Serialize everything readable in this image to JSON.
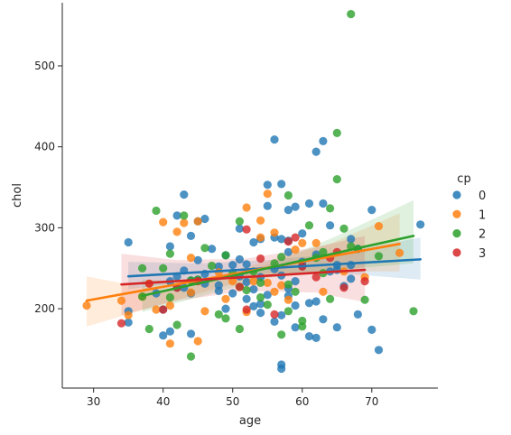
{
  "chart_data": {
    "type": "scatter",
    "xlabel": "age",
    "ylabel": "chol",
    "xlim": [
      25.5,
      79.5
    ],
    "ylim": [
      102,
      578
    ],
    "xticks": [
      30,
      40,
      50,
      60,
      70
    ],
    "yticks": [
      200,
      300,
      400,
      500
    ],
    "grid": false,
    "legend": {
      "title": "cp",
      "placement": "right",
      "entries": [
        "0",
        "1",
        "2",
        "3"
      ]
    },
    "series": [
      {
        "name": "0",
        "color": "#1f77b4",
        "regression": {
          "x": [
            35,
            77
          ],
          "y": [
            240,
            261
          ]
        },
        "band": {
          "x": [
            35,
            45,
            55,
            65,
            77
          ],
          "lower": [
            224,
            236,
            244,
            244,
            236
          ],
          "upper": [
            258,
            256,
            260,
            268,
            288
          ]
        },
        "points": [
          [
            35,
            282
          ],
          [
            35,
            197
          ],
          [
            35,
            183
          ],
          [
            39,
            219
          ],
          [
            40,
            167
          ],
          [
            40,
            199
          ],
          [
            41,
            172
          ],
          [
            41,
            234
          ],
          [
            41,
            277
          ],
          [
            42,
            240
          ],
          [
            42,
            226
          ],
          [
            42,
            315
          ],
          [
            43,
            341
          ],
          [
            43,
            226
          ],
          [
            43,
            247
          ],
          [
            44,
            290
          ],
          [
            44,
            169
          ],
          [
            44,
            219
          ],
          [
            44,
            235
          ],
          [
            45,
            260
          ],
          [
            45,
            236
          ],
          [
            45,
            308
          ],
          [
            46,
            311
          ],
          [
            46,
            231
          ],
          [
            46,
            243
          ],
          [
            47,
            274
          ],
          [
            48,
            222
          ],
          [
            48,
            252
          ],
          [
            48,
            229
          ],
          [
            49,
            266
          ],
          [
            49,
            200
          ],
          [
            50,
            219
          ],
          [
            50,
            254
          ],
          [
            51,
            299
          ],
          [
            51,
            261
          ],
          [
            51,
            240
          ],
          [
            52,
            212
          ],
          [
            52,
            255
          ],
          [
            52,
            233
          ],
          [
            53,
            282
          ],
          [
            53,
            224
          ],
          [
            53,
            203
          ],
          [
            54,
            239
          ],
          [
            54,
            206
          ],
          [
            54,
            286
          ],
          [
            54,
            195
          ],
          [
            55,
            353
          ],
          [
            55,
            327
          ],
          [
            55,
            217
          ],
          [
            56,
            409
          ],
          [
            56,
            288
          ],
          [
            56,
            249
          ],
          [
            56,
            184
          ],
          [
            57,
            354
          ],
          [
            57,
            286
          ],
          [
            57,
            241
          ],
          [
            57,
            192
          ],
          [
            57,
            131
          ],
          [
            57,
            126
          ],
          [
            58,
            322
          ],
          [
            58,
            284
          ],
          [
            58,
            270
          ],
          [
            58,
            225
          ],
          [
            58,
            216
          ],
          [
            59,
            326
          ],
          [
            59,
            234
          ],
          [
            59,
            204
          ],
          [
            59,
            177
          ],
          [
            60,
            258
          ],
          [
            60,
            253
          ],
          [
            60,
            293
          ],
          [
            61,
            330
          ],
          [
            61,
            207
          ],
          [
            61,
            166
          ],
          [
            62,
            394
          ],
          [
            62,
            267
          ],
          [
            62,
            209
          ],
          [
            62,
            164
          ],
          [
            63,
            330
          ],
          [
            63,
            187
          ],
          [
            63,
            407
          ],
          [
            64,
            303
          ],
          [
            64,
            246
          ],
          [
            65,
            254
          ],
          [
            65,
            248
          ],
          [
            65,
            177
          ],
          [
            66,
            228
          ],
          [
            67,
            286
          ],
          [
            67,
            254
          ],
          [
            67,
            237
          ],
          [
            68,
            274
          ],
          [
            68,
            193
          ],
          [
            70,
            322
          ],
          [
            70,
            174
          ],
          [
            71,
            149
          ],
          [
            77,
            304
          ]
        ]
      },
      {
        "name": "1",
        "color": "#ff7f0e",
        "regression": {
          "x": [
            29,
            74
          ],
          "y": [
            210,
            280
          ]
        },
        "band": {
          "x": [
            29,
            40,
            52,
            64,
            74
          ],
          "lower": [
            178,
            206,
            236,
            246,
            246
          ],
          "upper": [
            240,
            222,
            252,
            280,
            318
          ]
        },
        "points": [
          [
            29,
            204
          ],
          [
            34,
            210
          ],
          [
            35,
            192
          ],
          [
            37,
            215
          ],
          [
            38,
            231
          ],
          [
            39,
            199
          ],
          [
            40,
            307
          ],
          [
            41,
            157
          ],
          [
            41,
            204
          ],
          [
            42,
            295
          ],
          [
            43,
            306
          ],
          [
            44,
            220
          ],
          [
            44,
            263
          ],
          [
            45,
            308
          ],
          [
            45,
            160
          ],
          [
            46,
            197
          ],
          [
            48,
            245
          ],
          [
            49,
            212
          ],
          [
            50,
            234
          ],
          [
            52,
            196
          ],
          [
            52,
            325
          ],
          [
            53,
            234
          ],
          [
            54,
            288
          ],
          [
            54,
            309
          ],
          [
            55,
            342
          ],
          [
            55,
            232
          ],
          [
            56,
            221
          ],
          [
            56,
            294
          ],
          [
            57,
            229
          ],
          [
            58,
            211
          ],
          [
            59,
            273
          ],
          [
            60,
            281
          ],
          [
            62,
            281
          ],
          [
            63,
            221
          ],
          [
            66,
            246
          ],
          [
            69,
            239
          ],
          [
            71,
            302
          ],
          [
            74,
            269
          ]
        ]
      },
      {
        "name": "2",
        "color": "#2ca02c",
        "regression": {
          "x": [
            37,
            76
          ],
          "y": [
            216,
            290
          ]
        },
        "band": {
          "x": [
            37,
            45,
            55,
            65,
            76
          ],
          "lower": [
            196,
            214,
            238,
            248,
            256
          ],
          "upper": [
            236,
            232,
            254,
            290,
            334
          ]
        },
        "points": [
          [
            37,
            250
          ],
          [
            37,
            215
          ],
          [
            38,
            175
          ],
          [
            39,
            321
          ],
          [
            40,
            250
          ],
          [
            41,
            214
          ],
          [
            41,
            268
          ],
          [
            42,
            180
          ],
          [
            43,
            315
          ],
          [
            44,
            141
          ],
          [
            44,
            235
          ],
          [
            45,
            236
          ],
          [
            46,
            275
          ],
          [
            47,
            253
          ],
          [
            48,
            193
          ],
          [
            49,
            188
          ],
          [
            49,
            266
          ],
          [
            50,
            244
          ],
          [
            51,
            308
          ],
          [
            51,
            227
          ],
          [
            51,
            175
          ],
          [
            52,
            223
          ],
          [
            53,
            246
          ],
          [
            54,
            232
          ],
          [
            54,
            214
          ],
          [
            55,
            205
          ],
          [
            56,
            256
          ],
          [
            57,
            168
          ],
          [
            57,
            264
          ],
          [
            58,
            340
          ],
          [
            58,
            230
          ],
          [
            58,
            197
          ],
          [
            59,
            221
          ],
          [
            60,
            185
          ],
          [
            60,
            178
          ],
          [
            61,
            303
          ],
          [
            62,
            263
          ],
          [
            63,
            244
          ],
          [
            63,
            270
          ],
          [
            64,
            324
          ],
          [
            64,
            212
          ],
          [
            65,
            417
          ],
          [
            65,
            360
          ],
          [
            66,
            299
          ],
          [
            67,
            564
          ],
          [
            67,
            277
          ],
          [
            68,
            274
          ],
          [
            69,
            211
          ],
          [
            71,
            265
          ],
          [
            76,
            197
          ]
        ]
      },
      {
        "name": "3",
        "color": "#d62728",
        "regression": {
          "x": [
            34,
            69
          ],
          "y": [
            230,
            248
          ]
        },
        "band": {
          "x": [
            34,
            42,
            52,
            62,
            69
          ],
          "lower": [
            192,
            210,
            222,
            220,
            208
          ],
          "upper": [
            268,
            260,
            262,
            276,
            290
          ]
        },
        "points": [
          [
            34,
            182
          ],
          [
            38,
            231
          ],
          [
            40,
            199
          ],
          [
            42,
            226
          ],
          [
            45,
            234
          ],
          [
            51,
            227
          ],
          [
            52,
            298
          ],
          [
            52,
            199
          ],
          [
            54,
            262
          ],
          [
            56,
            193
          ],
          [
            58,
            283
          ],
          [
            59,
            288
          ],
          [
            60,
            252
          ],
          [
            62,
            239
          ],
          [
            64,
            263
          ],
          [
            65,
            270
          ],
          [
            66,
            226
          ],
          [
            69,
            234
          ]
        ]
      }
    ]
  }
}
